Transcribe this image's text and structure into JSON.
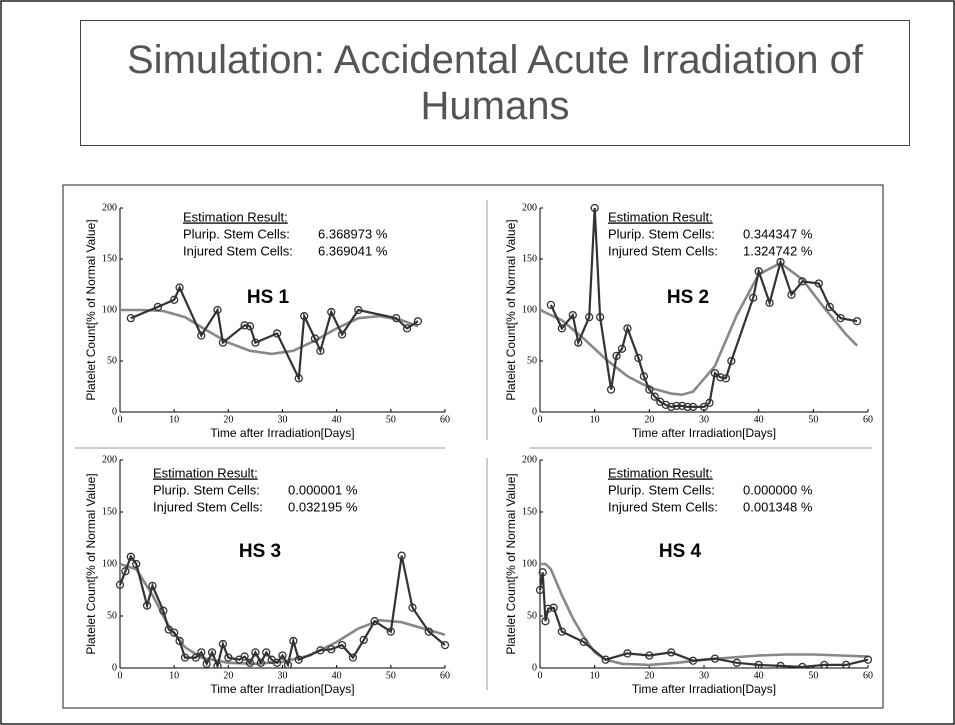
{
  "title": "Simulation: Accidental Acute Irradiation of Humans",
  "chart_data": [
    {
      "type": "line",
      "label": "HS 1",
      "xlabel": "Time after Irradiation[Days]",
      "ylabel": "Platelet Count[% of Normal Value]",
      "annotations": {
        "heading": "Estimation Result:",
        "rows": [
          [
            "Plurip. Stem Cells:",
            "6.368973 %"
          ],
          [
            "Injured Stem Cells:",
            "6.369041 %"
          ]
        ]
      },
      "xlim": [
        0,
        60
      ],
      "ylim": [
        0,
        200
      ],
      "xticks": [
        0,
        10,
        20,
        30,
        40,
        50,
        60
      ],
      "yticks": [
        0,
        50,
        100,
        150,
        200
      ],
      "series": [
        {
          "color": "#888888",
          "markers": false,
          "x": [
            0,
            4,
            8,
            12,
            16,
            20,
            24,
            28,
            32,
            36,
            40,
            44,
            48,
            52,
            55
          ],
          "values": [
            100,
            100,
            99,
            93,
            80,
            68,
            60,
            57,
            60,
            70,
            82,
            92,
            94,
            90,
            84
          ]
        },
        {
          "color": "#333333",
          "markers": true,
          "x": [
            2,
            7,
            10,
            11,
            15,
            18,
            19,
            23,
            24,
            25,
            29,
            33,
            34,
            36,
            37,
            39,
            41,
            44,
            51,
            53,
            55
          ],
          "values": [
            92,
            103,
            110,
            122,
            75,
            100,
            68,
            85,
            84,
            68,
            77,
            33,
            94,
            72,
            60,
            98,
            76,
            100,
            92,
            82,
            89
          ]
        }
      ]
    },
    {
      "type": "line",
      "label": "HS 2",
      "xlabel": "Time after Irradiation[Days]",
      "ylabel": "Platelet Count[% of Normal Value]",
      "annotations": {
        "heading": "Estimation Result:",
        "rows": [
          [
            "Plurip. Stem Cells:",
            "0.344347 %"
          ],
          [
            "Injured Stem Cells:",
            "1.324742 %"
          ]
        ]
      },
      "xlim": [
        0,
        60
      ],
      "ylim": [
        0,
        200
      ],
      "xticks": [
        0,
        10,
        20,
        30,
        40,
        50,
        60
      ],
      "yticks": [
        0,
        50,
        100,
        150,
        200
      ],
      "series": [
        {
          "color": "#888888",
          "markers": false,
          "x": [
            0,
            4,
            8,
            12,
            16,
            20,
            24,
            26,
            28,
            32,
            36,
            40,
            44,
            48,
            52,
            56,
            58
          ],
          "values": [
            100,
            90,
            72,
            52,
            35,
            24,
            18,
            17,
            20,
            45,
            95,
            135,
            146,
            130,
            102,
            76,
            65
          ]
        },
        {
          "color": "#333333",
          "markers": true,
          "x": [
            2,
            4,
            6,
            7,
            9,
            10,
            11,
            13,
            14,
            15,
            16,
            18,
            19,
            20,
            21,
            22,
            23,
            24,
            25,
            26,
            27,
            28,
            30,
            31,
            32,
            33,
            34,
            35,
            39,
            40,
            42,
            44,
            46,
            48,
            51,
            53,
            55,
            58
          ],
          "values": [
            105,
            82,
            95,
            68,
            93,
            200,
            93,
            22,
            55,
            62,
            82,
            53,
            35,
            22,
            15,
            10,
            7,
            5,
            6,
            6,
            5,
            5,
            5,
            9,
            38,
            34,
            33,
            50,
            112,
            138,
            107,
            147,
            115,
            128,
            126,
            103,
            92,
            89
          ]
        }
      ]
    },
    {
      "type": "line",
      "label": "HS 3",
      "xlabel": "Time after Irradiation[Days]",
      "ylabel": "Platelet Count[% of Normal Value]",
      "annotations": {
        "heading": "Estimation Result:",
        "rows": [
          [
            "Plurip. Stem Cells:",
            "0.000001 %"
          ],
          [
            "Injured Stem Cells:",
            "0.032195 %"
          ]
        ]
      },
      "xlim": [
        0,
        60
      ],
      "ylim": [
        0,
        200
      ],
      "xticks": [
        0,
        10,
        20,
        30,
        40,
        50,
        60
      ],
      "yticks": [
        0,
        50,
        100,
        150,
        200
      ],
      "series": [
        {
          "color": "#888888",
          "markers": false,
          "x": [
            0,
            3,
            6,
            9,
            12,
            15,
            20,
            25,
            30,
            35,
            40,
            44,
            48,
            52,
            56,
            60
          ],
          "values": [
            100,
            95,
            70,
            40,
            20,
            10,
            5,
            4,
            6,
            12,
            25,
            38,
            46,
            44,
            38,
            32
          ]
        },
        {
          "color": "#333333",
          "markers": true,
          "x": [
            0,
            1,
            2,
            3,
            5,
            6,
            8,
            9,
            10,
            11,
            12,
            14,
            15,
            16,
            17,
            18,
            19,
            20,
            22,
            23,
            24,
            25,
            26,
            27,
            28,
            29,
            30,
            31,
            32,
            33,
            37,
            39,
            41,
            43,
            45,
            47,
            50,
            52,
            54,
            57,
            60
          ],
          "values": [
            80,
            93,
            107,
            100,
            60,
            79,
            55,
            37,
            34,
            26,
            10,
            10,
            15,
            4,
            15,
            2,
            23,
            10,
            8,
            11,
            5,
            15,
            5,
            15,
            8,
            5,
            12,
            3,
            26,
            8,
            17,
            18,
            22,
            10,
            27,
            45,
            35,
            108,
            58,
            35,
            22
          ]
        }
      ]
    },
    {
      "type": "line",
      "label": "HS 4",
      "xlabel": "Time after Irradiation[Days]",
      "ylabel": "Platelet Count[% of Normal Value]",
      "annotations": {
        "heading": "Estimation Result:",
        "rows": [
          [
            "Plurip. Stem Cells:",
            "0.000000 %"
          ],
          [
            "Injured Stem Cells:",
            "0.001348 %"
          ]
        ]
      },
      "xlim": [
        0,
        60
      ],
      "ylim": [
        0,
        200
      ],
      "xticks": [
        0,
        10,
        20,
        30,
        40,
        50,
        60
      ],
      "yticks": [
        0,
        50,
        100,
        150,
        200
      ],
      "series": [
        {
          "color": "#888888",
          "markers": false,
          "x": [
            0,
            1,
            2,
            4,
            6,
            8,
            10,
            12,
            15,
            20,
            25,
            30,
            35,
            40,
            45,
            50,
            55,
            60
          ],
          "values": [
            100,
            100,
            95,
            70,
            48,
            30,
            15,
            8,
            4,
            3,
            5,
            8,
            10,
            12,
            13,
            13,
            12,
            11
          ]
        },
        {
          "color": "#333333",
          "markers": true,
          "x": [
            0,
            0.5,
            1,
            1.5,
            2.5,
            4,
            8,
            12,
            16,
            20,
            24,
            28,
            32,
            36,
            40,
            44,
            48,
            52,
            56,
            60
          ],
          "values": [
            75,
            92,
            45,
            57,
            58,
            35,
            25,
            8,
            14,
            12,
            15,
            7,
            9,
            5,
            3,
            2,
            1,
            3,
            3,
            8
          ]
        }
      ]
    }
  ]
}
